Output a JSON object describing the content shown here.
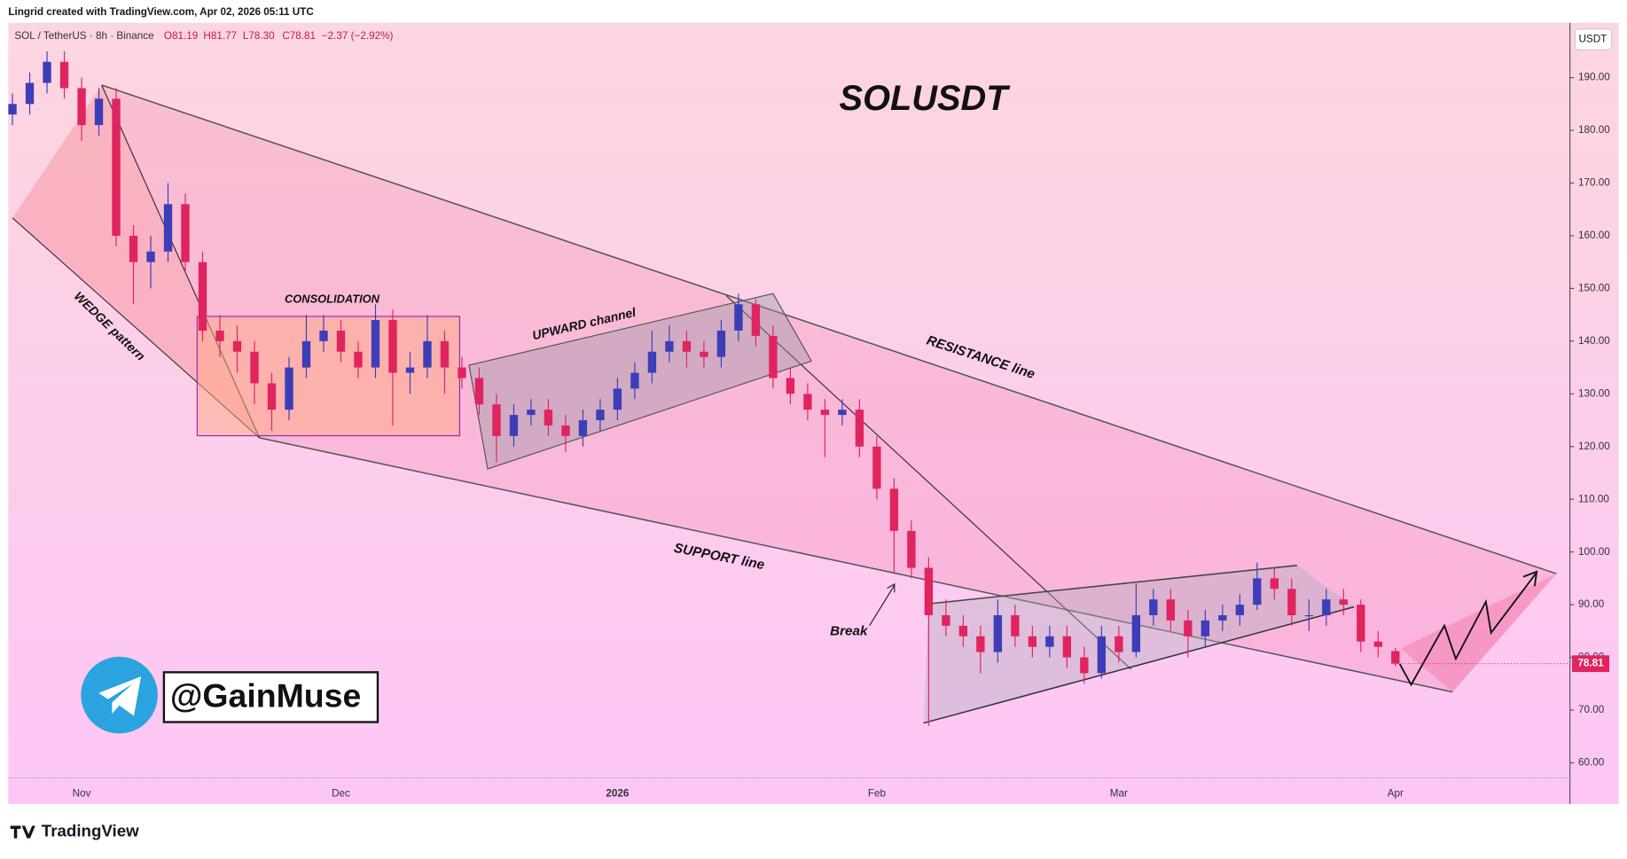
{
  "watermark": "Lingrid created with TradingView.com, Apr 02, 2026 05:11 UTC",
  "brand": "TradingView",
  "channel": "@GainMuse",
  "chart_data": {
    "type": "candlestick",
    "title": "SOLUSDT",
    "currency": "USDT",
    "legend": {
      "symbol": "SOL / TetherUS · 8h · Binance",
      "ohlc": [
        "O81.19",
        "H81.77",
        "L78.30",
        "C78.81"
      ],
      "change": "−2.37 (−2.92%)"
    },
    "annotations": [
      "CONSOLIDATION",
      "UPWARD channel",
      "RESISTANCE line",
      "SUPPORT line",
      "WEDGE pattern",
      "Break"
    ],
    "up_color": "#3d3db8",
    "down_color": "#e0245e",
    "grid": false,
    "ylim": [
      57.1,
      200.4
    ],
    "yticks": [
      {
        "value": 60,
        "label": "60.00"
      },
      {
        "value": 70,
        "label": "70.00"
      },
      {
        "value": 80,
        "label": "80.00"
      },
      {
        "value": 90,
        "label": "90.00"
      },
      {
        "value": 100,
        "label": "100.00"
      },
      {
        "value": 110,
        "label": "110.00"
      },
      {
        "value": 120,
        "label": "120.00"
      },
      {
        "value": 130,
        "label": "130.00"
      },
      {
        "value": 140,
        "label": "140.00"
      },
      {
        "value": 150,
        "label": "150.00"
      },
      {
        "value": 160,
        "label": "160.00"
      },
      {
        "value": 170,
        "label": "170.00"
      },
      {
        "value": 180,
        "label": "180.00"
      },
      {
        "value": 190,
        "label": "190.00"
      }
    ],
    "categories": [
      null,
      null,
      null,
      null,
      "Nov",
      null,
      null,
      null,
      null,
      null,
      null,
      null,
      null,
      null,
      null,
      null,
      null,
      null,
      null,
      "Dec",
      null,
      null,
      null,
      null,
      null,
      null,
      null,
      null,
      null,
      null,
      null,
      null,
      null,
      null,
      null,
      "2026",
      null,
      null,
      null,
      null,
      null,
      null,
      null,
      null,
      null,
      null,
      null,
      null,
      null,
      null,
      "Feb",
      null,
      null,
      null,
      null,
      null,
      null,
      null,
      null,
      null,
      null,
      null,
      null,
      null,
      "Mar",
      null,
      null,
      null,
      null,
      null,
      null,
      null,
      null,
      null,
      null,
      null,
      null,
      null,
      null,
      null,
      "Apr"
    ],
    "open": [
      183,
      185,
      189,
      193,
      188,
      181,
      186,
      160,
      155,
      157,
      166,
      155,
      142,
      140,
      138,
      132,
      127,
      135,
      140,
      142,
      138,
      135,
      144,
      134,
      135,
      140,
      135,
      133,
      128,
      122,
      126,
      127,
      124,
      122,
      125,
      127,
      131,
      134,
      138,
      140,
      138,
      137,
      142,
      147,
      141,
      133,
      130,
      127,
      126,
      127,
      120,
      112,
      104,
      97,
      88,
      86,
      84,
      81,
      88,
      84,
      82,
      84,
      80,
      77,
      84,
      81,
      88,
      91,
      87,
      84,
      87,
      88,
      90,
      95,
      93,
      88,
      88,
      91,
      90,
      83,
      81.19
    ],
    "high": [
      187,
      191,
      195,
      195,
      190,
      188,
      188,
      162,
      160,
      170,
      168,
      157,
      145,
      143,
      140,
      134,
      137,
      145,
      145,
      144,
      140,
      147,
      146,
      138,
      145,
      142,
      137,
      135,
      130,
      128,
      129,
      129,
      126,
      127,
      129,
      133,
      136,
      142,
      143,
      142,
      140,
      144,
      149,
      148,
      143,
      135,
      132,
      129,
      129,
      129,
      122,
      114,
      106,
      99,
      91,
      88,
      86,
      91,
      90,
      86,
      86,
      86,
      82,
      86,
      86,
      94,
      93,
      93,
      89,
      89,
      90,
      92,
      98,
      97,
      95,
      91,
      93,
      93,
      91,
      85,
      81.77
    ],
    "low": [
      181,
      183,
      187,
      186,
      178,
      179,
      158,
      147,
      150,
      155,
      153,
      140,
      137,
      134,
      128,
      123,
      125,
      133,
      138,
      136,
      133,
      133,
      124,
      130,
      133,
      130,
      131,
      126,
      117,
      120,
      124,
      122,
      119,
      120,
      123,
      125,
      129,
      132,
      136,
      135,
      135,
      135,
      140,
      139,
      131,
      128,
      125,
      118,
      124,
      118,
      110,
      96,
      95,
      67,
      84,
      82,
      77,
      79,
      82,
      80,
      80,
      78,
      75,
      76,
      79,
      80,
      86,
      85,
      80,
      82,
      85,
      86,
      89,
      91,
      86,
      85,
      86,
      88,
      81,
      80,
      78.3
    ],
    "close": [
      185,
      189,
      193,
      188,
      181,
      186,
      160,
      155,
      157,
      166,
      155,
      142,
      140,
      138,
      132,
      127,
      135,
      140,
      142,
      138,
      135,
      144,
      134,
      135,
      140,
      135,
      133,
      128,
      122,
      126,
      127,
      124,
      122,
      125,
      127,
      131,
      134,
      138,
      140,
      138,
      137,
      142,
      147,
      141,
      133,
      130,
      127,
      126,
      127,
      120,
      112,
      104,
      97,
      88,
      86,
      84,
      81,
      88,
      84,
      82,
      84,
      80,
      77,
      84,
      81,
      88,
      91,
      87,
      84,
      87,
      88,
      90,
      95,
      93,
      88,
      88,
      91,
      90,
      83,
      82,
      78.81
    ]
  }
}
